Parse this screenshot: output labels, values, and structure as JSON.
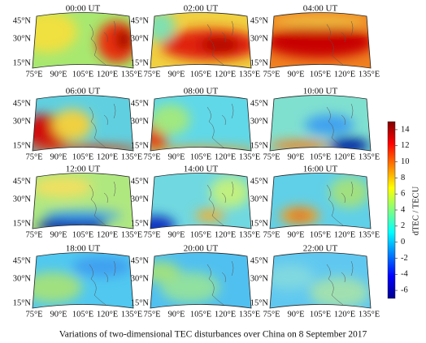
{
  "panels": [
    {
      "title": "00:00 UT"
    },
    {
      "title": "02:00 UT"
    },
    {
      "title": "04:00 UT"
    },
    {
      "title": "06:00 UT"
    },
    {
      "title": "08:00 UT"
    },
    {
      "title": "10:00 UT"
    },
    {
      "title": "12:00 UT"
    },
    {
      "title": "14:00 UT"
    },
    {
      "title": "16:00 UT"
    },
    {
      "title": "18:00 UT"
    },
    {
      "title": "20:00 UT"
    },
    {
      "title": "22:00 UT"
    }
  ],
  "lat_labels": [
    "45°N",
    "30°N",
    "15°N"
  ],
  "lon_labels": [
    "75°E",
    "90°E",
    "105°E",
    "120°E",
    "135°E"
  ],
  "colorbar": {
    "label": "dTEC / TECU",
    "lim": [
      -7,
      15
    ],
    "ticks": [
      -6,
      -4,
      -2,
      0,
      2,
      4,
      6,
      8,
      10,
      12,
      14
    ]
  },
  "caption": "Variations of two-dimensional TEC disturbances over China on 8 September 2017"
}
